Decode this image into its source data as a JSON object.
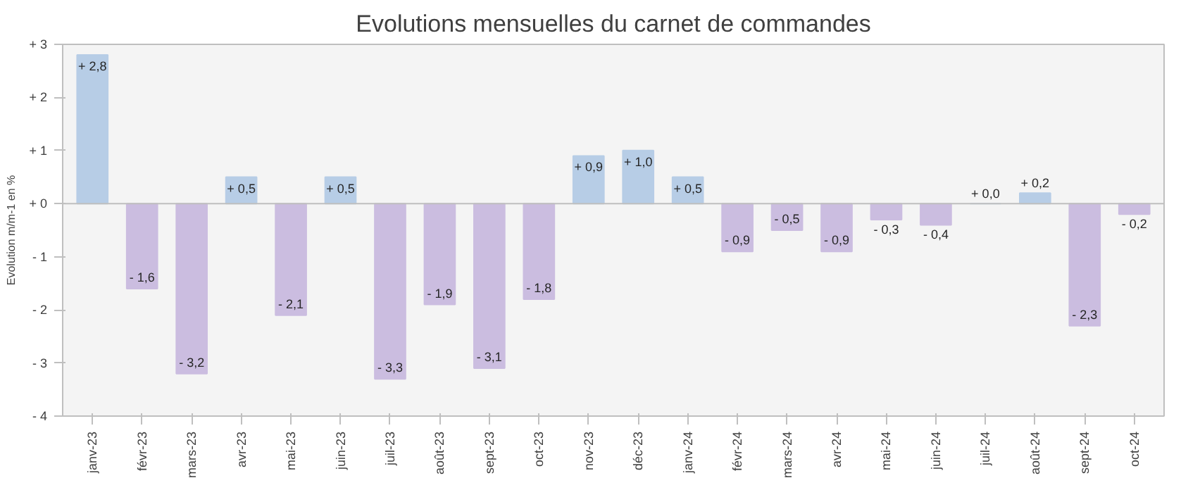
{
  "chart_data": {
    "type": "bar",
    "title": "Evolutions mensuelles du carnet de commandes",
    "ylabel": "Evolution m/m-1 en %",
    "categories": [
      "janv-23",
      "févr-23",
      "mars-23",
      "avr-23",
      "mai-23",
      "juin-23",
      "juil-23",
      "août-23",
      "sept-23",
      "oct-23",
      "nov-23",
      "déc-23",
      "janv-24",
      "févr-24",
      "mars-24",
      "avr-24",
      "mai-24",
      "juin-24",
      "juil-24",
      "août-24",
      "sept-24",
      "oct-24"
    ],
    "values": [
      2.8,
      -1.6,
      -3.2,
      0.5,
      -2.1,
      0.5,
      -3.3,
      -1.9,
      -3.1,
      -1.8,
      0.9,
      1.0,
      0.5,
      -0.9,
      -0.5,
      -0.9,
      -0.3,
      -0.4,
      0.0,
      0.2,
      -2.3,
      -0.2
    ],
    "colors": [
      "#b7cde6",
      "#cbbde0",
      "#cbbde0",
      "#b7cde6",
      "#cbbde0",
      "#b7cde6",
      "#cbbde0",
      "#cbbde0",
      "#cbbde0",
      "#cbbde0",
      "#b7cde6",
      "#b7cde6",
      "#b7cde6",
      "#cbbde0",
      "#cbbde0",
      "#cbbde0",
      "#cbbde0",
      "#cbbde0",
      "#b7cde6",
      "#b7cde6",
      "#cbbde0",
      "#cbbde0"
    ],
    "value_labels": [
      "+ 2,8",
      "- 1,6",
      "- 3,2",
      "+ 0,5",
      "- 2,1",
      "+ 0,5",
      "- 3,3",
      "- 1,9",
      "- 3,1",
      "- 1,8",
      "+ 0,9",
      "+ 1,0",
      "+ 0,5",
      "- 0,9",
      "- 0,5",
      "- 0,9",
      "- 0,3",
      "- 0,4",
      "+ 0,0",
      "+ 0,2",
      "- 2,3",
      "- 0,2"
    ],
    "ylim": [
      -4,
      3
    ],
    "yticks": [
      {
        "value": 3,
        "label": "+ 3"
      },
      {
        "value": 2,
        "label": "+ 2"
      },
      {
        "value": 1,
        "label": "+ 1"
      },
      {
        "value": 0,
        "label": "+ 0"
      },
      {
        "value": -1,
        "label": "- 1"
      },
      {
        "value": -2,
        "label": "- 2"
      },
      {
        "value": -3,
        "label": "- 3"
      },
      {
        "value": -4,
        "label": "- 4"
      }
    ],
    "ref_lines": [
      {
        "axis": "y",
        "value": 0,
        "color": "#bfbfbf"
      }
    ],
    "grid": false
  }
}
